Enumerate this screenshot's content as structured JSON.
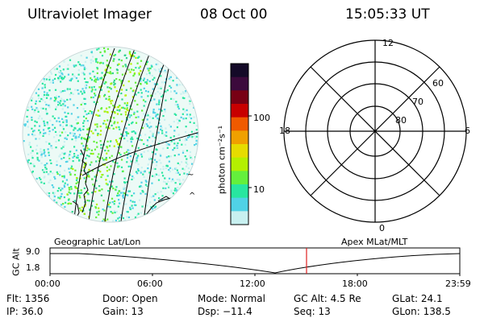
{
  "header": {
    "title": "Ultraviolet Imager",
    "date": "08 Oct 00",
    "time": "15:05:33 UT"
  },
  "colorbar": {
    "unit_label": "photon cm⁻²s⁻¹",
    "tick_labels": [
      "100",
      "10"
    ],
    "scale": "log",
    "colors": [
      "#140a28",
      "#3c0a3c",
      "#780014",
      "#c80000",
      "#f05a00",
      "#f0a000",
      "#e6dc00",
      "#b4f000",
      "#64f03c",
      "#28e6a0",
      "#50d2e6",
      "#c8f0f0"
    ]
  },
  "geo_panel": {
    "label": "Geographic Lat/Lon"
  },
  "polar_panel": {
    "label": "Apex MLat/MLT",
    "mlt_labels": [
      "12",
      "18",
      "6",
      "0"
    ],
    "lat_labels": [
      "60",
      "70",
      "80"
    ]
  },
  "altitude_plot": {
    "axis_label": "GC Alt",
    "y_ticks": [
      "9.0",
      "1.8"
    ],
    "x_ticks": [
      "00:00",
      "06:00",
      "12:00",
      "18:00",
      "23:59"
    ],
    "marker_color": "#e02020"
  },
  "info": {
    "flt": "Flt: 1356",
    "door": "Door: Open",
    "mode": "Mode: Normal",
    "gc_alt": "GC Alt: 4.5 Re",
    "glat": "GLat:  24.1",
    "ip": "IP: 36.0",
    "gain": "Gain: 13",
    "dsp": "Dsp:  −11.4",
    "seq": "Seq: 13",
    "glon": "GLon: 138.5"
  }
}
